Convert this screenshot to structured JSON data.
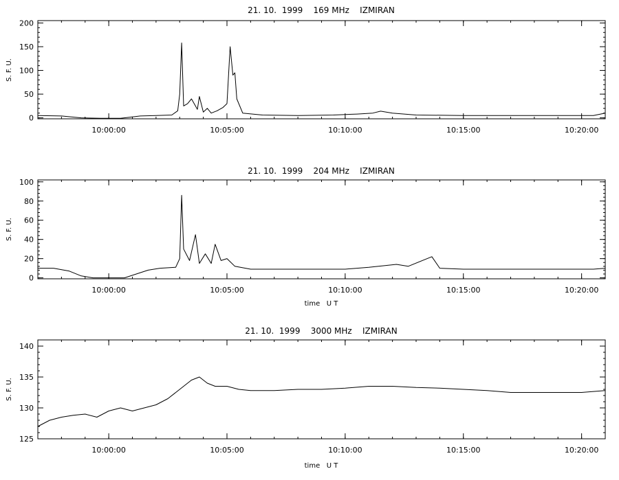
{
  "chart_data": [
    {
      "type": "line",
      "title": "21. 10.  1999    169 MHz    IZMIRAN",
      "ylabel": "S. F. U.",
      "xlabel": "",
      "xlim": [
        "09:57:00",
        "10:21:00"
      ],
      "ylim": [
        -2,
        205
      ],
      "grid": false,
      "x_ticks": [
        "10:00:00",
        "10:05:00",
        "10:10:00",
        "10:15:00",
        "10:20:00"
      ],
      "y_ticks": [
        0,
        50,
        100,
        150,
        200
      ],
      "series": [
        {
          "color": "#000000",
          "points": [
            [
              "09:57:00",
              5
            ],
            [
              "09:58:00",
              4
            ],
            [
              "09:58:50",
              0
            ],
            [
              "09:59:40",
              -1
            ],
            [
              "10:00:30",
              -1
            ],
            [
              "10:01:00",
              2
            ],
            [
              "10:01:20",
              4
            ],
            [
              "10:02:00",
              5
            ],
            [
              "10:02:40",
              6
            ],
            [
              "10:02:55",
              15
            ],
            [
              "10:03:00",
              50
            ],
            [
              "10:03:05",
              158
            ],
            [
              "10:03:10",
              25
            ],
            [
              "10:03:20",
              30
            ],
            [
              "10:03:30",
              40
            ],
            [
              "10:03:45",
              18
            ],
            [
              "10:03:50",
              45
            ],
            [
              "10:04:00",
              12
            ],
            [
              "10:04:10",
              20
            ],
            [
              "10:04:20",
              10
            ],
            [
              "10:04:35",
              15
            ],
            [
              "10:04:50",
              22
            ],
            [
              "10:05:00",
              30
            ],
            [
              "10:05:08",
              150
            ],
            [
              "10:05:15",
              90
            ],
            [
              "10:05:20",
              95
            ],
            [
              "10:05:25",
              40
            ],
            [
              "10:05:40",
              10
            ],
            [
              "10:06:30",
              6
            ],
            [
              "10:08:00",
              5
            ],
            [
              "10:09:30",
              6
            ],
            [
              "10:10:30",
              8
            ],
            [
              "10:11:10",
              10
            ],
            [
              "10:11:30",
              14
            ],
            [
              "10:12:00",
              10
            ],
            [
              "10:13:00",
              6
            ],
            [
              "10:15:00",
              5
            ],
            [
              "10:17:00",
              5
            ],
            [
              "10:19:00",
              5
            ],
            [
              "10:20:30",
              5
            ],
            [
              "10:21:00",
              10
            ]
          ]
        }
      ]
    },
    {
      "type": "line",
      "title": "21. 10.  1999    204 MHz    IZMIRAN",
      "ylabel": "S. F. U.",
      "xlabel": "time   U T",
      "xlim": [
        "09:57:00",
        "10:21:00"
      ],
      "ylim": [
        -1,
        102
      ],
      "grid": false,
      "x_ticks": [
        "10:00:00",
        "10:05:00",
        "10:10:00",
        "10:15:00",
        "10:20:00"
      ],
      "y_ticks": [
        0,
        20,
        40,
        60,
        80,
        100
      ],
      "series": [
        {
          "color": "#000000",
          "points": [
            [
              "09:57:00",
              10
            ],
            [
              "09:57:40",
              10
            ],
            [
              "09:58:20",
              7
            ],
            [
              "09:58:50",
              2
            ],
            [
              "09:59:20",
              0
            ],
            [
              "10:00:00",
              0
            ],
            [
              "10:00:40",
              0
            ],
            [
              "10:01:10",
              4
            ],
            [
              "10:01:40",
              8
            ],
            [
              "10:02:10",
              10
            ],
            [
              "10:02:50",
              11
            ],
            [
              "10:03:00",
              20
            ],
            [
              "10:03:05",
              86
            ],
            [
              "10:03:10",
              30
            ],
            [
              "10:03:25",
              18
            ],
            [
              "10:03:40",
              45
            ],
            [
              "10:03:50",
              15
            ],
            [
              "10:04:05",
              25
            ],
            [
              "10:04:20",
              15
            ],
            [
              "10:04:30",
              35
            ],
            [
              "10:04:45",
              18
            ],
            [
              "10:05:00",
              20
            ],
            [
              "10:05:20",
              12
            ],
            [
              "10:06:00",
              9
            ],
            [
              "10:08:00",
              9
            ],
            [
              "10:10:00",
              9
            ],
            [
              "10:11:00",
              11
            ],
            [
              "10:12:10",
              14
            ],
            [
              "10:12:40",
              12
            ],
            [
              "10:13:40",
              22
            ],
            [
              "10:14:00",
              10
            ],
            [
              "10:15:00",
              9
            ],
            [
              "10:17:00",
              9
            ],
            [
              "10:19:00",
              9
            ],
            [
              "10:20:30",
              9
            ],
            [
              "10:21:00",
              10
            ]
          ]
        }
      ]
    },
    {
      "type": "line",
      "title": "21. 10.  1999    3000 MHz    IZMIRAN",
      "ylabel": "S. F. U.",
      "xlabel": "time   U T",
      "xlim": [
        "09:57:00",
        "10:21:00"
      ],
      "ylim": [
        125,
        141
      ],
      "grid": false,
      "x_ticks": [
        "10:00:00",
        "10:05:00",
        "10:10:00",
        "10:15:00",
        "10:20:00"
      ],
      "y_ticks": [
        125,
        130,
        135,
        140
      ],
      "series": [
        {
          "color": "#000000",
          "points": [
            [
              "09:57:00",
              127.0
            ],
            [
              "09:57:30",
              128.0
            ],
            [
              "09:58:00",
              128.5
            ],
            [
              "09:58:30",
              128.8
            ],
            [
              "09:59:00",
              129.0
            ],
            [
              "09:59:30",
              128.5
            ],
            [
              "10:00:00",
              129.5
            ],
            [
              "10:00:30",
              130.0
            ],
            [
              "10:01:00",
              129.5
            ],
            [
              "10:01:30",
              130.0
            ],
            [
              "10:02:00",
              130.5
            ],
            [
              "10:02:30",
              131.5
            ],
            [
              "10:03:00",
              133.0
            ],
            [
              "10:03:30",
              134.5
            ],
            [
              "10:03:50",
              135.0
            ],
            [
              "10:04:10",
              134.0
            ],
            [
              "10:04:30",
              133.5
            ],
            [
              "10:05:00",
              133.5
            ],
            [
              "10:05:30",
              133.0
            ],
            [
              "10:06:00",
              132.8
            ],
            [
              "10:07:00",
              132.8
            ],
            [
              "10:08:00",
              133.0
            ],
            [
              "10:09:00",
              133.0
            ],
            [
              "10:10:00",
              133.2
            ],
            [
              "10:11:00",
              133.5
            ],
            [
              "10:12:00",
              133.5
            ],
            [
              "10:13:00",
              133.3
            ],
            [
              "10:14:00",
              133.2
            ],
            [
              "10:15:00",
              133.0
            ],
            [
              "10:16:00",
              132.8
            ],
            [
              "10:17:00",
              132.5
            ],
            [
              "10:18:00",
              132.5
            ],
            [
              "10:19:00",
              132.5
            ],
            [
              "10:20:00",
              132.5
            ],
            [
              "10:21:00",
              132.8
            ]
          ]
        }
      ]
    }
  ]
}
